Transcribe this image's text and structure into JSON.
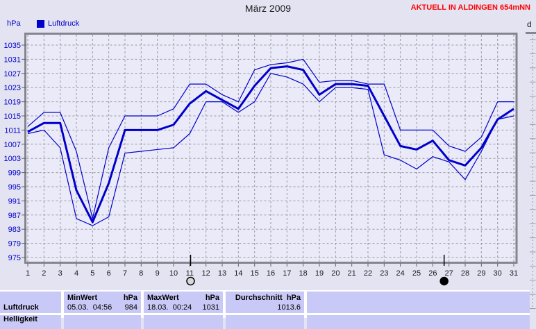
{
  "header": {
    "title": "März 2009",
    "station_label": "AKTUELL IN ALDINGEN 654mNN"
  },
  "axes": {
    "y_unit_label": "hPa"
  },
  "legend": {
    "label": "Luftdruck",
    "swatch_color": "#0000cc"
  },
  "colors": {
    "accent_blue": "#0000cc",
    "alert_red": "#ff0000",
    "grid": "#9a9aa2",
    "frame": "#85858f",
    "plot_bg": "#eaeaf8",
    "page_bg": "#e3e3f1",
    "cell_bg": "#c9c9f7"
  },
  "right_panel": {
    "partial_label": "d"
  },
  "moon_markers": [
    {
      "type": "full-moon",
      "day": 11.05
    },
    {
      "type": "new-moon",
      "day": 26.7
    }
  ],
  "chart_data": {
    "type": "line",
    "title": "März 2009",
    "xlabel": "",
    "ylabel": "hPa",
    "x": [
      1,
      2,
      3,
      4,
      5,
      6,
      7,
      8,
      9,
      10,
      11,
      12,
      13,
      14,
      15,
      16,
      17,
      18,
      19,
      20,
      21,
      22,
      23,
      24,
      25,
      26,
      27,
      28,
      29,
      30,
      31
    ],
    "ylim": [
      975,
      1035
    ],
    "y_tick_step": 4,
    "grid": true,
    "legend_position": "top-left",
    "series": [
      {
        "name": "max",
        "values": [
          1012,
          1016,
          1016,
          1005,
          986,
          1006,
          1015,
          1015,
          1015,
          1017,
          1024,
          1024,
          1021,
          1019,
          1028,
          1029.5,
          1030,
          1031,
          1024.5,
          1025,
          1025,
          1024,
          1024,
          1011,
          1011,
          1011,
          1006.5,
          1005,
          1009,
          1019,
          1019
        ]
      },
      {
        "name": "avg",
        "values": [
          1010.5,
          1013,
          1013,
          994,
          985,
          996,
          1011,
          1011,
          1011,
          1012.5,
          1018.5,
          1022,
          1019.5,
          1017,
          1023.5,
          1028.5,
          1029,
          1028,
          1021,
          1024,
          1024,
          1023.5,
          1015,
          1006.5,
          1005.5,
          1008,
          1002.5,
          1001,
          1006,
          1014,
          1017
        ]
      },
      {
        "name": "min",
        "values": [
          1010,
          1011,
          1006,
          986,
          984,
          986.5,
          1004.5,
          1005,
          1005.5,
          1006,
          1010,
          1019,
          1019,
          1016,
          1019,
          1027,
          1026,
          1024,
          1019,
          1023,
          1023,
          1022.5,
          1004,
          1002.5,
          1000,
          1003.5,
          1002,
          997,
          1005,
          1014,
          1015
        ]
      }
    ]
  },
  "table": {
    "row_label": "Luftdruck",
    "next_row_label": "Helligkeit",
    "min": {
      "header": "MinWert",
      "unit": "hPa",
      "datetime": "05.03.  04:56",
      "value": "984"
    },
    "max": {
      "header": "MaxWert",
      "unit": "hPa",
      "datetime": "18.03.  00:24",
      "value": "1031"
    },
    "avg": {
      "header": "Durchschnitt  hPa",
      "value": "1013.6"
    }
  }
}
